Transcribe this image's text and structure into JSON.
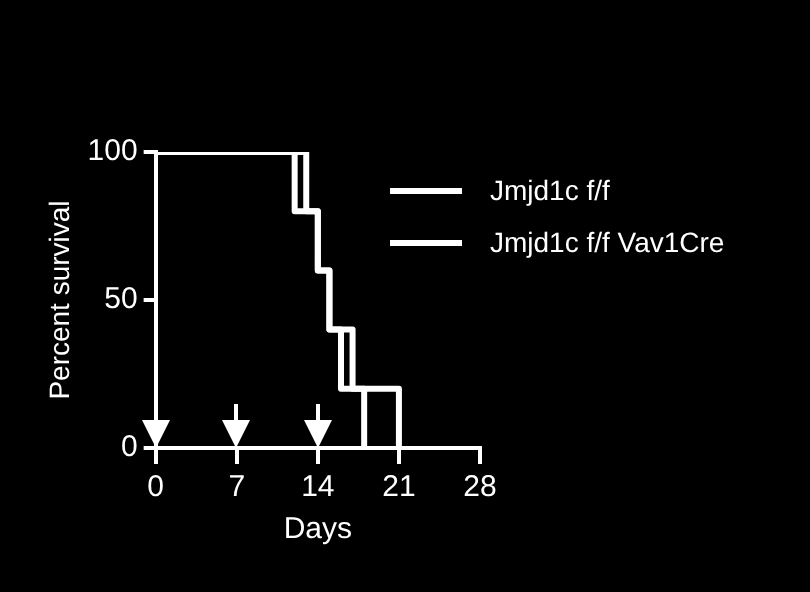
{
  "chart_data": {
    "type": "step",
    "xlabel": "Days",
    "ylabel": "Percent survival",
    "series": [
      {
        "name": "Jmjd1c f/f",
        "color": "#ffffff",
        "x": [
          0,
          12,
          14,
          15,
          16,
          18
        ],
        "values": [
          100,
          80,
          60,
          40,
          20,
          0
        ]
      },
      {
        "name": "Jmjd1c f/f Vav1Cre",
        "color": "#ffffff",
        "x": [
          0,
          13,
          14,
          15,
          17,
          21
        ],
        "values": [
          100,
          80,
          60,
          40,
          20,
          0
        ]
      }
    ],
    "xlim": [
      0,
      28
    ],
    "xticks": [
      0,
      7,
      14,
      21,
      28
    ],
    "ylim": [
      0,
      100
    ],
    "yticks": [
      0,
      50,
      100
    ],
    "grid": false,
    "legend": "top right",
    "marker": "none",
    "line_style": "solid"
  }
}
